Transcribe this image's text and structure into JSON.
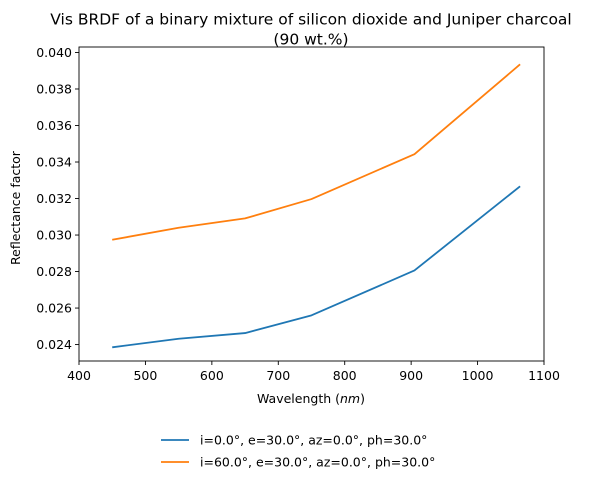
{
  "chart_data": {
    "type": "line",
    "title_line1": "Vis BRDF of a binary mixture of silicon dioxide and Juniper charcoal",
    "title_line2": "(90 wt.%)",
    "xlabel_prefix": "Wavelength (",
    "xlabel_unit": "nm",
    "xlabel_suffix": ")",
    "ylabel": "Reflectance factor",
    "xlim": [
      400,
      1100
    ],
    "ylim": [
      0.0231,
      0.0403
    ],
    "xticks": [
      400,
      500,
      600,
      700,
      800,
      900,
      1000,
      1100
    ],
    "yticks": [
      0.024,
      0.026,
      0.028,
      0.03,
      0.032,
      0.034,
      0.036,
      0.038,
      0.04
    ],
    "ytick_labels": [
      "0.024",
      "0.026",
      "0.028",
      "0.030",
      "0.032",
      "0.034",
      "0.036",
      "0.038",
      "0.040"
    ],
    "grid": false,
    "legend_position": "below",
    "series": [
      {
        "name": "i=0.0°, e=30.0°, az=0.0°, ph=30.0°",
        "color": "#1f77b4",
        "x": [
          450,
          550,
          650,
          750,
          905,
          1064
        ],
        "y": [
          0.02385,
          0.02432,
          0.02463,
          0.0256,
          0.02806,
          0.03267
        ]
      },
      {
        "name": "i=60.0°, e=30.0°, az=0.0°, ph=30.0°",
        "color": "#ff7f0e",
        "x": [
          450,
          550,
          650,
          750,
          905,
          1064
        ],
        "y": [
          0.02974,
          0.0304,
          0.03091,
          0.03197,
          0.03443,
          0.03935
        ]
      }
    ]
  }
}
